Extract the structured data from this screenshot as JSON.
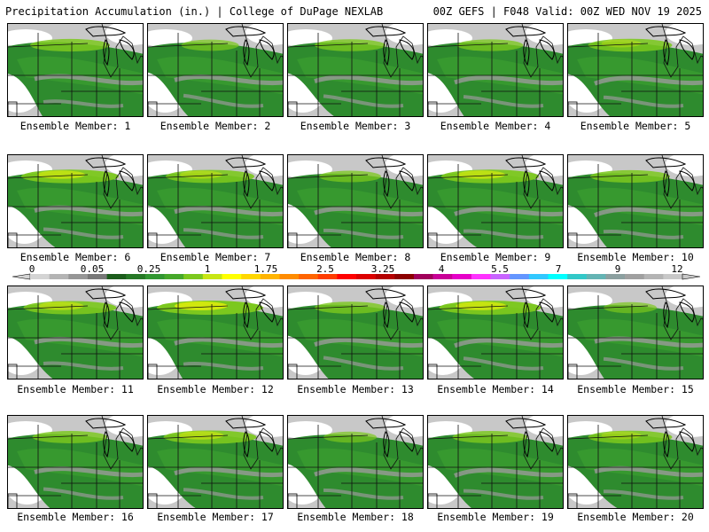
{
  "header": {
    "left": "Precipitation Accumulation (in.) | College of DuPage NEXLAB",
    "right": "00Z GEFS | F048 Valid: 00Z WED NOV 19 2025"
  },
  "colorbar": {
    "labels": [
      "0",
      "0.05",
      "0.25",
      "1",
      "1.75",
      "2.5",
      "3.25",
      "4",
      "5.5",
      "7",
      "9",
      "12"
    ],
    "colors": [
      "#d4d4d4",
      "#b4b4b4",
      "#969696",
      "#787878",
      "#1c5c1c",
      "#267826",
      "#329632",
      "#46a82a",
      "#7cc81e",
      "#c8e614",
      "#ffff00",
      "#ffd700",
      "#ffb400",
      "#ff8c00",
      "#ff6400",
      "#ff3c00",
      "#ff0000",
      "#dc0000",
      "#b40000",
      "#8c0000",
      "#a0005a",
      "#c80096",
      "#e600c8",
      "#ff32ff",
      "#c864ff",
      "#6496ff",
      "#32c8ff",
      "#00ffff",
      "#32c8c8",
      "#64b4b4",
      "#8ca0a0",
      "#a0a0a0",
      "#b4b4b4",
      "#c8c8c8"
    ]
  },
  "panels": [
    {
      "label": "Ensemble Member: 1",
      "intensity": 0.7
    },
    {
      "label": "Ensemble Member: 2",
      "intensity": 0.45
    },
    {
      "label": "Ensemble Member: 3",
      "intensity": 0.6
    },
    {
      "label": "Ensemble Member: 4",
      "intensity": 0.55
    },
    {
      "label": "Ensemble Member: 5",
      "intensity": 0.75
    },
    {
      "label": "Ensemble Member: 6",
      "intensity": 0.9
    },
    {
      "label": "Ensemble Member: 7",
      "intensity": 0.8
    },
    {
      "label": "Ensemble Member: 8",
      "intensity": 0.5
    },
    {
      "label": "Ensemble Member: 9",
      "intensity": 0.9
    },
    {
      "label": "Ensemble Member: 10",
      "intensity": 0.7
    },
    {
      "label": "Ensemble Member: 11",
      "intensity": 0.85
    },
    {
      "label": "Ensemble Member: 12",
      "intensity": 1.0
    },
    {
      "label": "Ensemble Member: 13",
      "intensity": 0.6
    },
    {
      "label": "Ensemble Member: 14",
      "intensity": 0.95
    },
    {
      "label": "Ensemble Member: 15",
      "intensity": 0.4
    },
    {
      "label": "Ensemble Member: 16",
      "intensity": 0.65
    },
    {
      "label": "Ensemble Member: 17",
      "intensity": 0.85
    },
    {
      "label": "Ensemble Member: 18",
      "intensity": 0.4
    },
    {
      "label": "Ensemble Member: 19",
      "intensity": 0.65
    },
    {
      "label": "Ensemble Member: 20",
      "intensity": 0.75
    }
  ]
}
